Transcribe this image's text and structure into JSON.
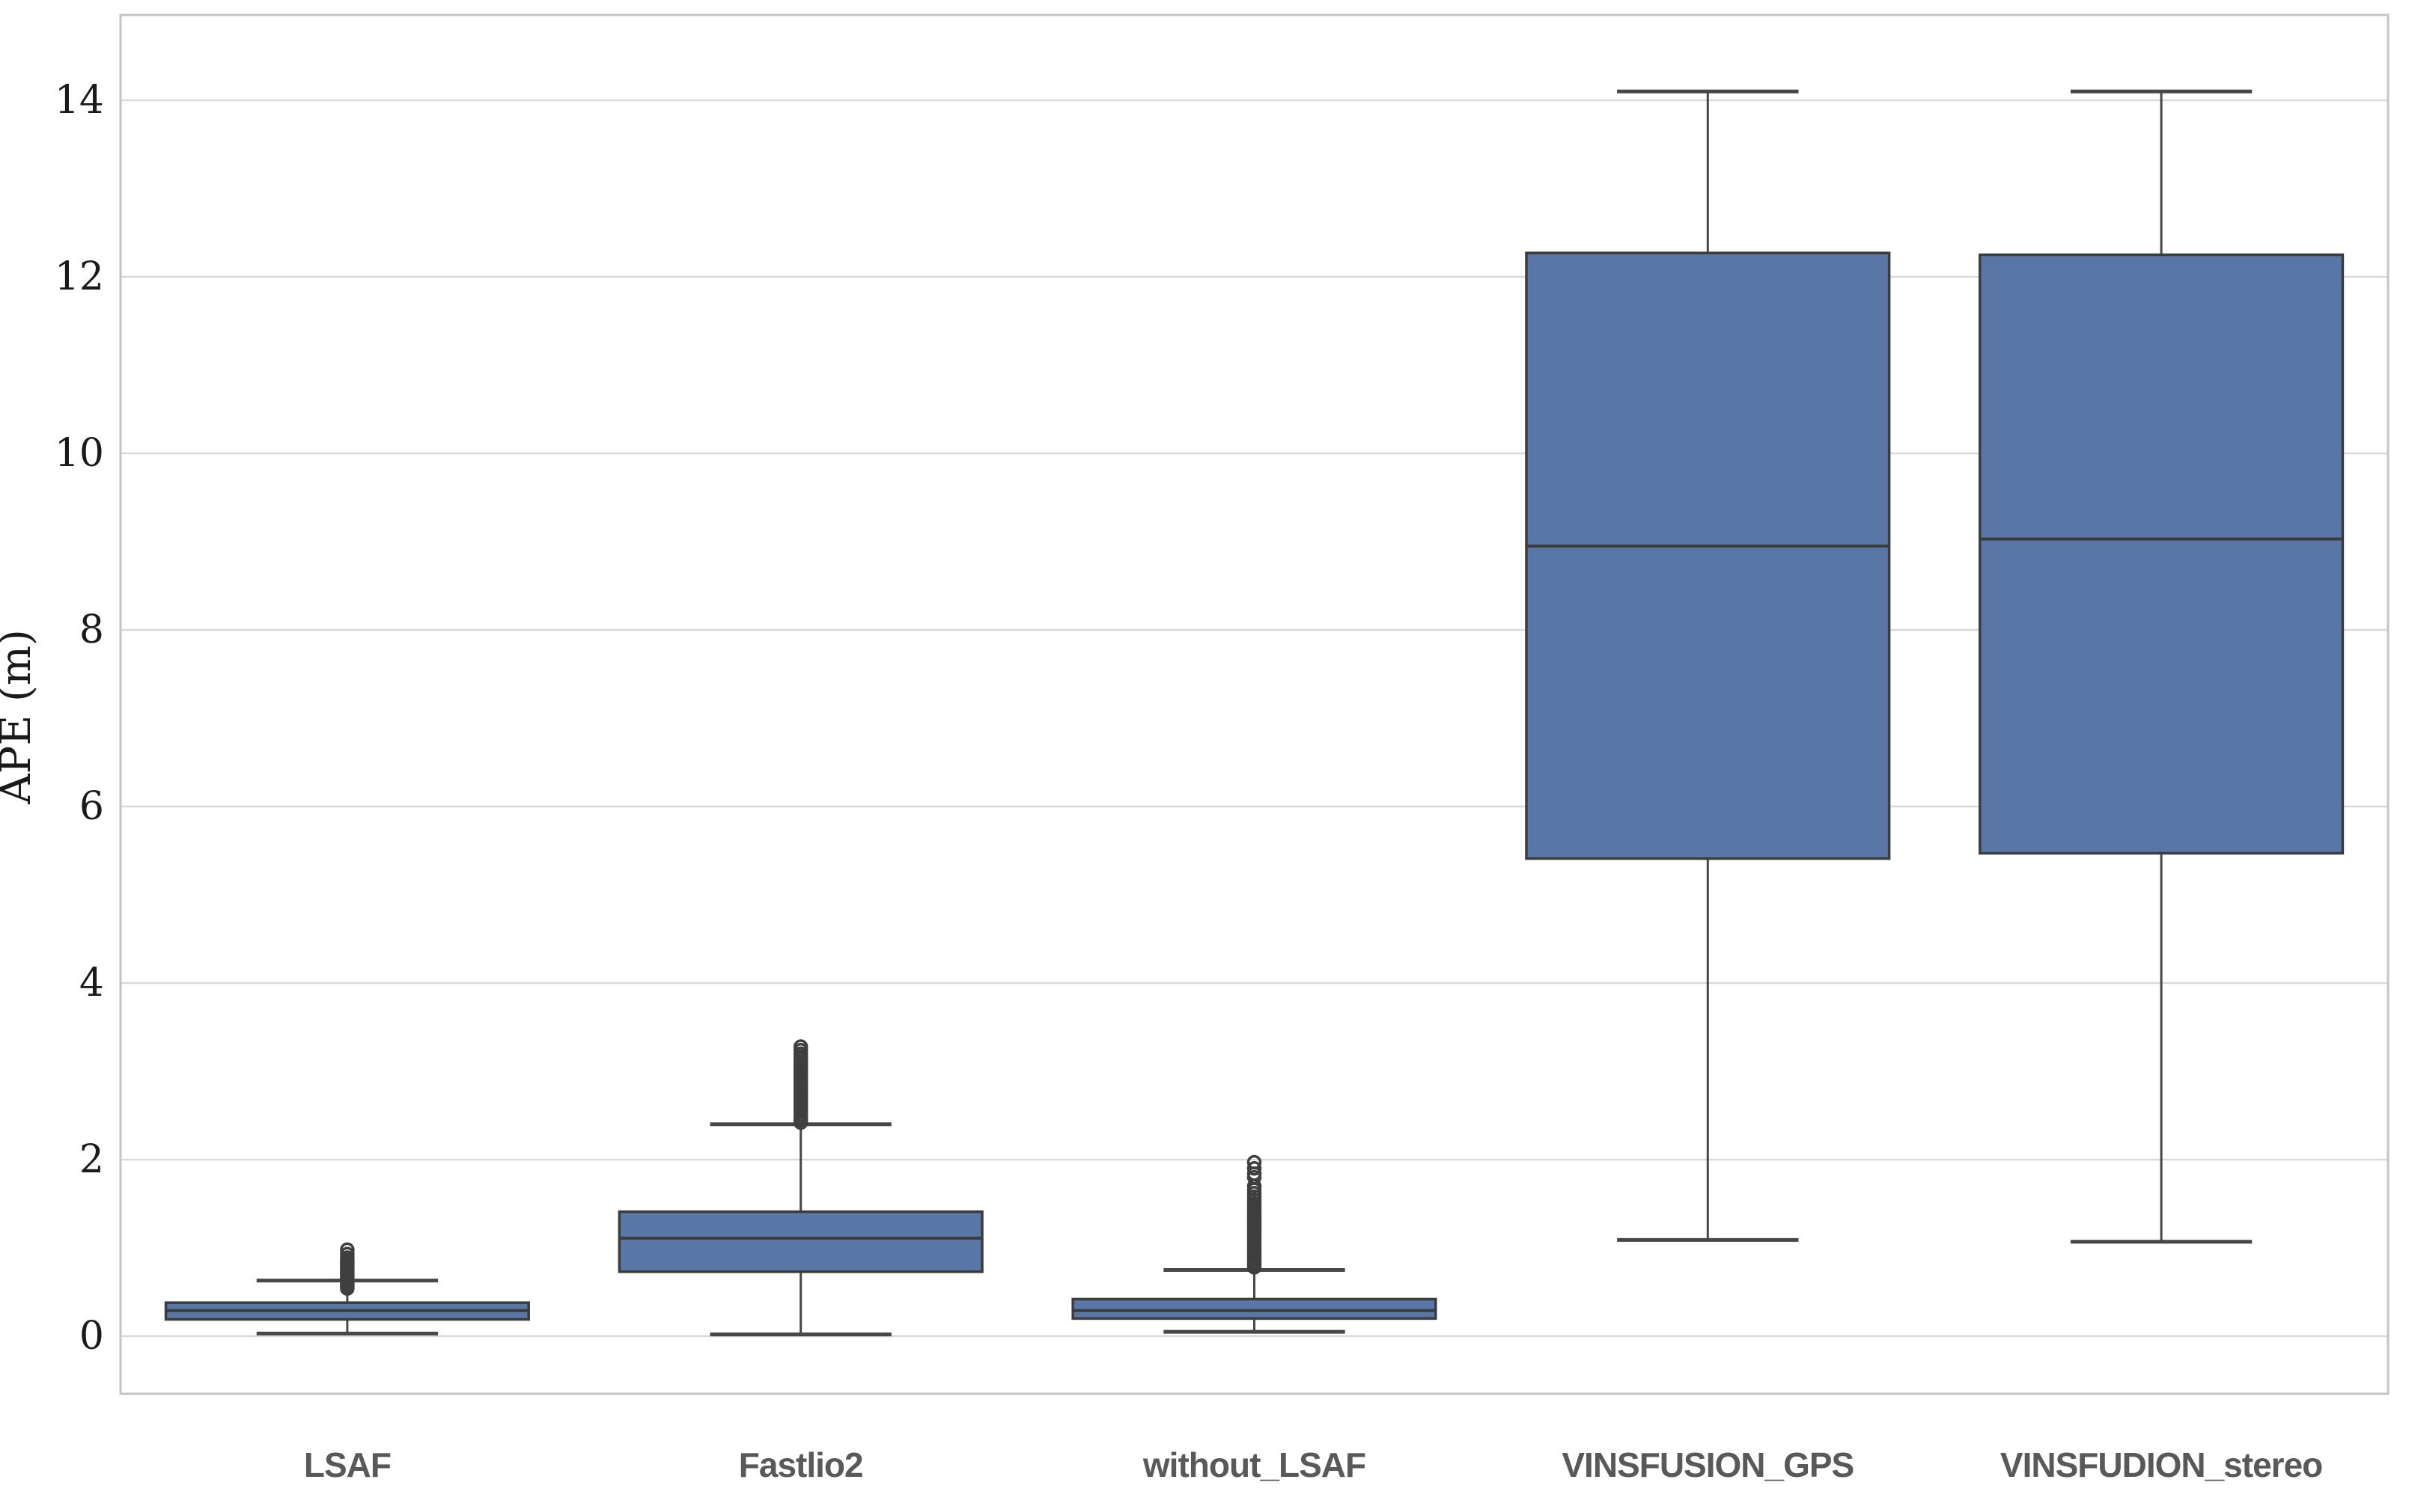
{
  "chart_data": {
    "type": "boxplot",
    "title": "",
    "xlabel": "",
    "ylabel": "APE (m)",
    "categories": [
      "LSAF",
      "Fastlio2",
      "without_LSAF",
      "VINSFUSION_GPS",
      "VINSFUDION_stereo"
    ],
    "yticks": [
      0,
      2,
      4,
      6,
      8,
      10,
      12,
      14
    ],
    "ylim": [
      -0.65,
      14.97
    ],
    "grid": "horizontal",
    "legend": "none",
    "boxes": [
      {
        "category": "LSAF",
        "whisker_low": 0.03,
        "q1": 0.19,
        "median": 0.29,
        "q3": 0.38,
        "whisker_high": 0.63,
        "outliers": [
          0.54,
          0.56,
          0.58,
          0.6,
          0.62,
          0.64,
          0.66,
          0.68,
          0.7,
          0.72,
          0.74,
          0.76,
          0.78,
          0.8,
          0.82,
          0.84,
          0.86,
          0.89,
          0.93,
          0.98
        ]
      },
      {
        "category": "Fastlio2",
        "whisker_low": 0.02,
        "q1": 0.73,
        "median": 1.11,
        "q3": 1.41,
        "whisker_high": 2.4,
        "outliers": [
          2.42,
          2.45,
          2.48,
          2.51,
          2.54,
          2.57,
          2.6,
          2.63,
          2.66,
          2.69,
          2.72,
          2.75,
          2.78,
          2.81,
          2.84,
          2.87,
          2.9,
          2.93,
          2.96,
          2.99,
          3.02,
          3.05,
          3.08,
          3.11,
          3.14,
          3.17,
          3.2,
          3.24,
          3.28
        ]
      },
      {
        "category": "without_LSAF",
        "whisker_low": 0.05,
        "q1": 0.2,
        "median": 0.29,
        "q3": 0.42,
        "whisker_high": 0.75,
        "outliers": [
          0.78,
          0.81,
          0.84,
          0.87,
          0.9,
          0.93,
          0.96,
          0.99,
          1.02,
          1.05,
          1.08,
          1.11,
          1.14,
          1.17,
          1.2,
          1.23,
          1.26,
          1.29,
          1.32,
          1.35,
          1.38,
          1.41,
          1.44,
          1.47,
          1.5,
          1.54,
          1.58,
          1.62,
          1.66,
          1.7,
          1.8,
          1.84,
          1.9,
          1.97
        ]
      },
      {
        "category": "VINSFUSION_GPS",
        "whisker_low": 1.09,
        "q1": 5.41,
        "median": 8.95,
        "q3": 12.27,
        "whisker_high": 14.1,
        "outliers": []
      },
      {
        "category": "VINSFUDION_stereo",
        "whisker_low": 1.07,
        "q1": 5.47,
        "median": 9.03,
        "q3": 12.25,
        "whisker_high": 14.1,
        "outliers": []
      }
    ],
    "style": {
      "box_fill": "#5876A6",
      "box_edge": "#3C3C3C",
      "median_color": "#3C3C3C",
      "whisker_color": "#474747",
      "outlier_edge": "#3F3F3F",
      "grid_color": "#D9D9D9",
      "spine_color": "#C4C4C4",
      "tick_label_color": "#1A1A1A",
      "category_label_color": "#595959",
      "background": "#FFFFFF"
    }
  }
}
